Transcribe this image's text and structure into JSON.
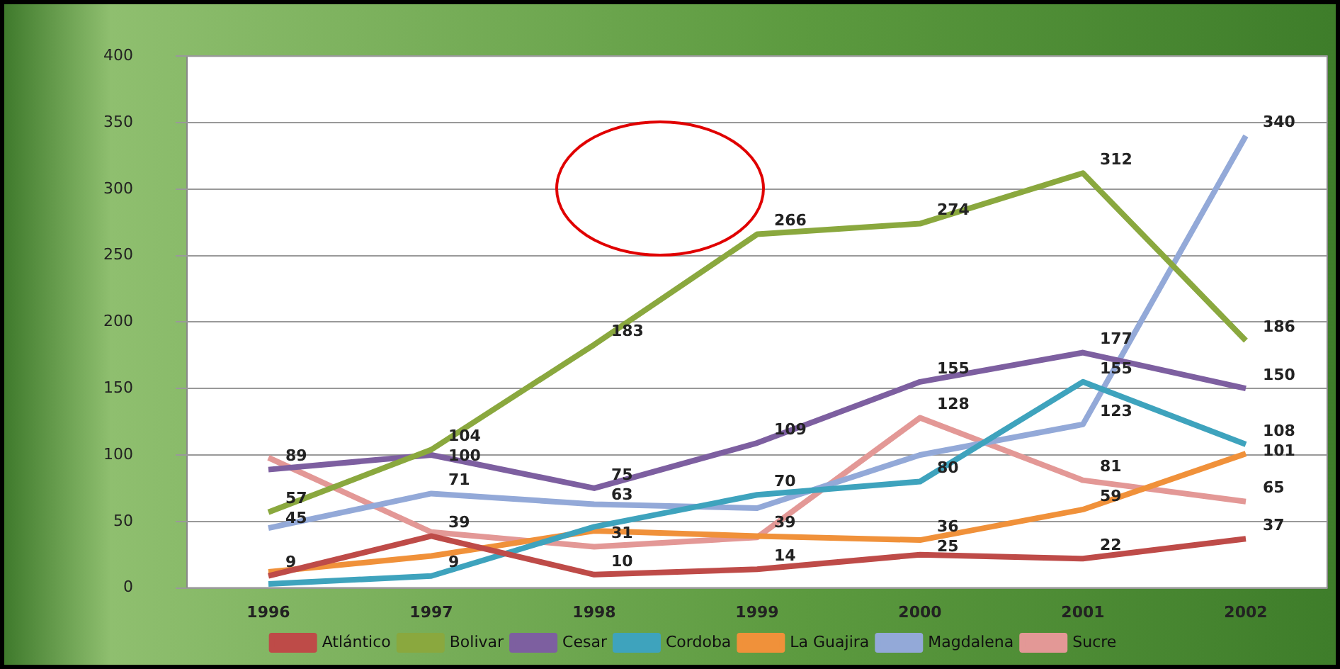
{
  "chart_data": {
    "type": "line",
    "categories": [
      "1996",
      "1997",
      "1998",
      "1999",
      "2000",
      "2001",
      "2002"
    ],
    "ylim": [
      0,
      400
    ],
    "yticks": [
      0,
      50,
      100,
      150,
      200,
      250,
      300,
      350,
      400
    ],
    "grid": "y",
    "legend": "bottom",
    "marker": "none",
    "line_style": "solid",
    "series": [
      {
        "name": "Atlántico",
        "color": "#be4b48",
        "values": [
          9,
          39,
          10,
          14,
          25,
          22,
          37
        ],
        "value_labels": [
          "9",
          "39",
          "10",
          "14",
          "25",
          "22",
          "37"
        ]
      },
      {
        "name": "Bolivar",
        "color": "#8aa83e",
        "values": [
          57,
          104,
          183,
          266,
          274,
          312,
          186
        ],
        "value_labels": [
          "57",
          "104",
          "183",
          "266",
          "274",
          "312",
          "186"
        ]
      },
      {
        "name": "Cesar",
        "color": "#7d5fa0",
        "values": [
          89,
          100,
          75,
          109,
          155,
          177,
          150
        ],
        "value_labels": [
          "89",
          "100",
          "75",
          "109",
          "155",
          "177",
          "150"
        ]
      },
      {
        "name": "Cordoba",
        "color": "#3ea3bd",
        "values": [
          3,
          9,
          46,
          70,
          80,
          155,
          108
        ],
        "value_labels": [
          null,
          "9",
          null,
          "70",
          "80",
          "155",
          "108"
        ]
      },
      {
        "name": "La Guajira",
        "color": "#f0913a",
        "values": [
          12,
          24,
          43,
          39,
          36,
          59,
          101
        ],
        "value_labels": [
          null,
          null,
          null,
          "39",
          "36",
          "59",
          "101"
        ]
      },
      {
        "name": "Magdalena",
        "color": "#93a9d8",
        "values": [
          45,
          71,
          63,
          60,
          100,
          123,
          340
        ],
        "value_labels": [
          "45",
          "71",
          "63",
          null,
          null,
          "123",
          "340"
        ]
      },
      {
        "name": "Sucre",
        "color": "#e39896",
        "values": [
          98,
          42,
          31,
          38,
          128,
          81,
          65
        ],
        "value_labels": [
          null,
          null,
          "31",
          null,
          "128",
          "81",
          "65"
        ]
      }
    ]
  }
}
